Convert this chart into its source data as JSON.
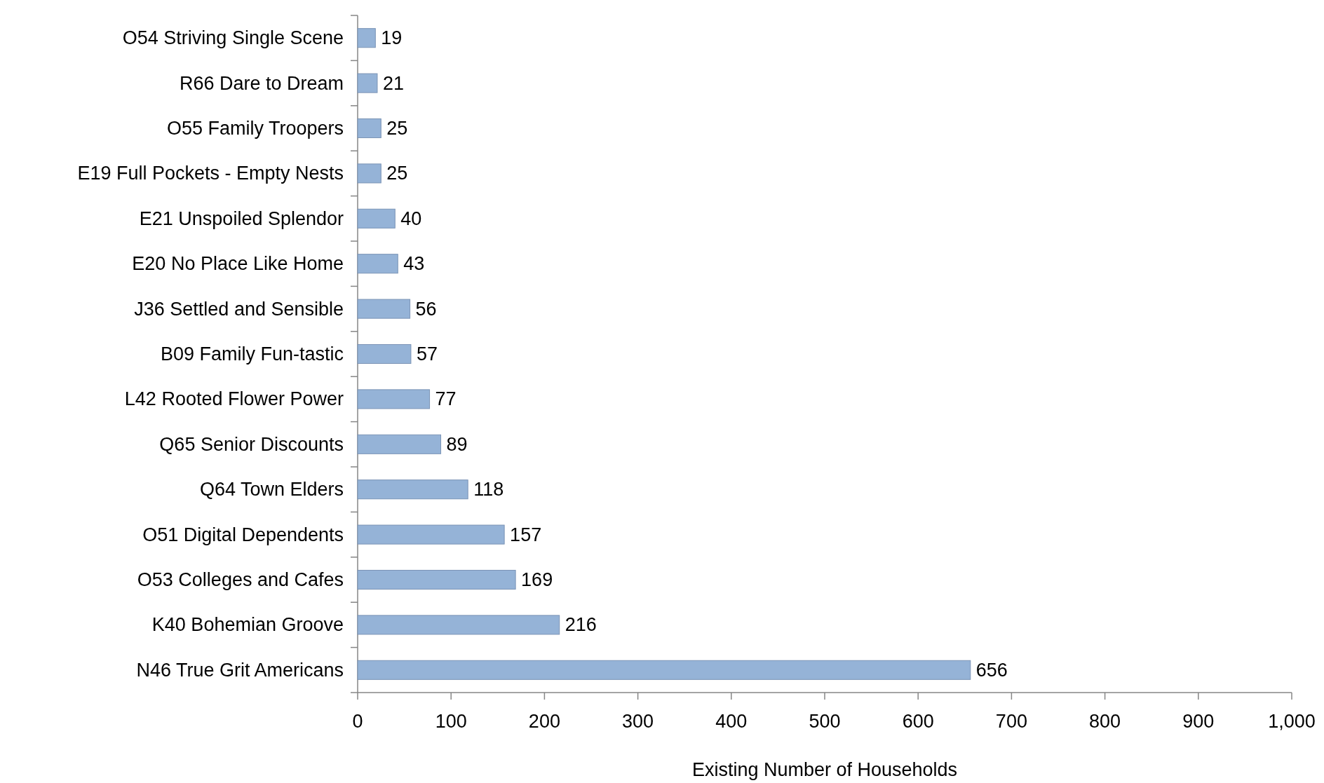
{
  "chart_data": {
    "type": "bar",
    "orientation": "horizontal",
    "categories": [
      "O54 Striving Single Scene",
      "R66 Dare to Dream",
      "O55 Family Troopers",
      "E19 Full Pockets - Empty Nests",
      "E21 Unspoiled Splendor",
      "E20 No Place Like Home",
      "J36 Settled and Sensible",
      "B09 Family Fun-tastic",
      "L42 Rooted Flower Power",
      "Q65 Senior Discounts",
      "Q64 Town Elders",
      "O51 Digital Dependents",
      "O53 Colleges and Cafes",
      "K40 Bohemian Groove",
      "N46 True Grit Americans"
    ],
    "values": [
      19,
      21,
      25,
      25,
      40,
      43,
      56,
      57,
      77,
      89,
      118,
      157,
      169,
      216,
      656
    ],
    "color": "#95b3d7",
    "xlabel": "Existing Number of Households",
    "xlim": [
      0,
      1000
    ],
    "xticks": [
      0,
      100,
      200,
      300,
      400,
      500,
      600,
      700,
      800,
      900,
      {
        "value": 1000,
        "label": "1,000"
      }
    ],
    "data_labels": true
  }
}
